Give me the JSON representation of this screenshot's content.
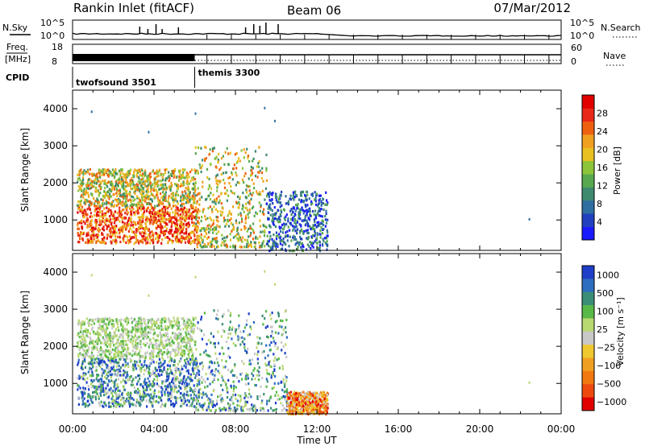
{
  "header": {
    "title": "Rankin Inlet (fitACF)",
    "beam": "Beam 06",
    "date": "07/Mar/2012"
  },
  "strip_labels": {
    "nsky": "N.Sky",
    "nsearch": "N.Search",
    "freq": "Freq.",
    "mhz": "[MHz]",
    "nave": "Nave",
    "cpid": "CPID",
    "noise_ticks_left": [
      "10^5",
      "10^0"
    ],
    "noise_ticks_right": [
      "10^5",
      "10^0"
    ],
    "freq_ticks": [
      "18",
      "8"
    ],
    "nave_ticks": [
      "60",
      "0"
    ]
  },
  "cpid_segments": [
    {
      "label": "twofsound 3501",
      "start_hour": 0,
      "end_hour": 6
    },
    {
      "label": "themis 3300",
      "start_hour": 6,
      "end_hour": 24
    }
  ],
  "chart_data": [
    {
      "type": "heatmap",
      "name": "power",
      "ylabel": "Slant Range [km]",
      "xlim": [
        0,
        24
      ],
      "ylim": [
        180,
        4500
      ],
      "yticks": [
        1000,
        2000,
        3000,
        4000
      ],
      "colorbar": {
        "label": "Power [dB]",
        "tick_labels": [
          "4",
          "8",
          "12",
          "16",
          "20",
          "24",
          "28"
        ],
        "colors": [
          "#1a1aff",
          "#2040c0",
          "#2e6ea0",
          "#3e8a6e",
          "#58a850",
          "#8cc43a",
          "#e8c020",
          "#f0a020",
          "#ee6010",
          "#e82818",
          "#e00000"
        ]
      },
      "echo_regions": [
        {
          "hours": [
            0.2,
            6.2
          ],
          "range_km": [
            400,
            1400
          ],
          "level": "high"
        },
        {
          "hours": [
            0.2,
            6.0
          ],
          "range_km": [
            1400,
            2400
          ],
          "level": "medium"
        },
        {
          "hours": [
            6.0,
            9.5
          ],
          "range_km": [
            300,
            3000
          ],
          "level": "medium"
        },
        {
          "hours": [
            9.5,
            12.5
          ],
          "range_km": [
            200,
            1800
          ],
          "level": "low"
        }
      ]
    },
    {
      "type": "heatmap",
      "name": "velocity",
      "xlabel": "Time UT",
      "ylabel": "Slant Range [km]",
      "xlim": [
        0,
        24
      ],
      "ylim": [
        180,
        4500
      ],
      "yticks": [
        1000,
        2000,
        3000,
        4000
      ],
      "xtick_labels": [
        "00:00",
        "04:00",
        "08:00",
        "12:00",
        "16:00",
        "20:00",
        "00:00"
      ],
      "colorbar": {
        "label": "Velocity [m s⁻¹]",
        "tick_labels": [
          "1000",
          "500",
          "100",
          "25",
          "−25",
          "−100",
          "−500",
          "−1000"
        ],
        "colors": [
          "#1f3fc8",
          "#2e6ec0",
          "#3a8e78",
          "#58b848",
          "#b8d870",
          "#c8c8c8",
          "#f0c830",
          "#f0a020",
          "#f07810",
          "#ee4a10",
          "#e00000"
        ]
      },
      "echo_regions": [
        {
          "hours": [
            0.2,
            6.2
          ],
          "range_km": [
            400,
            1700
          ],
          "level": "towards"
        },
        {
          "hours": [
            0.2,
            6.0
          ],
          "range_km": [
            1700,
            2800
          ],
          "level": "slow"
        },
        {
          "hours": [
            6.0,
            10.5
          ],
          "range_km": [
            300,
            3000
          ],
          "level": "mixed"
        },
        {
          "hours": [
            10.5,
            12.5
          ],
          "range_km": [
            200,
            800
          ],
          "level": "away"
        }
      ]
    }
  ]
}
